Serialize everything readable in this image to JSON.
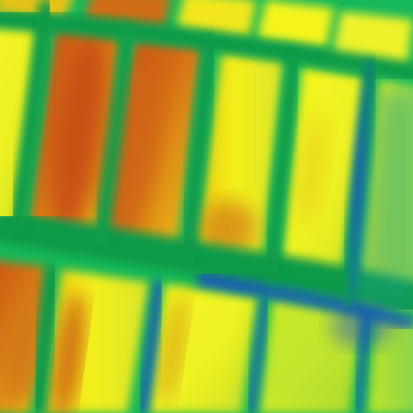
{
  "image": {
    "palette": {
      "background_green": "#16b85a",
      "deep_green": "#0a9a4a",
      "blue": "#1a4fc0",
      "teal": "#1ea08a",
      "yellow": "#f4f21a",
      "yellow_orange": "#e8cc18",
      "orange": "#d78b16",
      "red_orange": "#c84f12",
      "lime": "#b8e030"
    }
  }
}
